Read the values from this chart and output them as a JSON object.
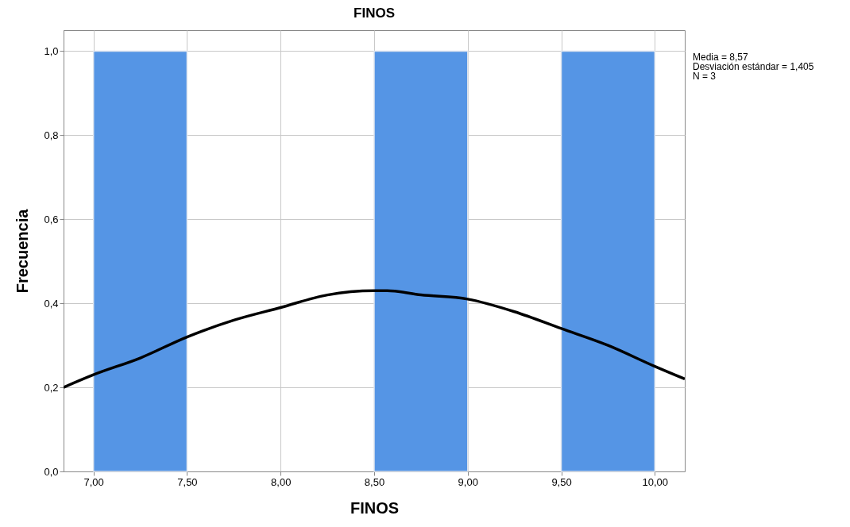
{
  "chart_data": {
    "type": "histogram",
    "title": "FINOS",
    "xlabel": "FINOS",
    "ylabel": "Frecuencia",
    "bins": [
      7.0,
      7.5,
      8.0,
      8.5,
      9.0,
      9.5,
      10.0
    ],
    "values": [
      1,
      0,
      0,
      1,
      0,
      1
    ],
    "color": "#5595e5",
    "series": [
      {
        "type": "line",
        "color": "#000000",
        "x": [
          6.84,
          7.0,
          7.25,
          7.5,
          7.75,
          8.0,
          8.25,
          8.5,
          8.57,
          8.75,
          9.0,
          9.25,
          9.5,
          9.75,
          10.0,
          10.16
        ],
        "values": [
          0.2,
          0.23,
          0.27,
          0.32,
          0.36,
          0.39,
          0.42,
          0.43,
          0.43,
          0.42,
          0.41,
          0.38,
          0.34,
          0.3,
          0.25,
          0.22
        ]
      }
    ],
    "xlim": [
      6.84,
      10.16
    ],
    "xticks": [
      {
        "value": 7,
        "label": "7,00"
      },
      {
        "value": 7.5,
        "label": "7,50"
      },
      {
        "value": 8,
        "label": "8,00"
      },
      {
        "value": 8.5,
        "label": "8,50"
      },
      {
        "value": 9,
        "label": "9,00"
      },
      {
        "value": 9.5,
        "label": "9,50"
      },
      {
        "value": 10,
        "label": "10,00"
      }
    ],
    "ylim": [
      0,
      1.05
    ],
    "yticks": [
      {
        "value": 0,
        "label": "0,0"
      },
      {
        "value": 0.2,
        "label": "0,2"
      },
      {
        "value": 0.4,
        "label": "0,4"
      },
      {
        "value": 0.6,
        "label": "0,6"
      },
      {
        "value": 0.8,
        "label": "0,8"
      },
      {
        "value": 1,
        "label": "1,0"
      }
    ],
    "grid": true,
    "annotations": [
      "Media = 8,57",
      "Desviación estándar = 1,405",
      "N = 3"
    ]
  }
}
